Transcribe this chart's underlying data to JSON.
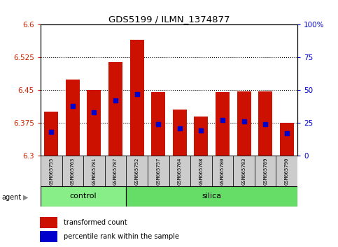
{
  "title": "GDS5199 / ILMN_1374877",
  "samples": [
    "GSM665755",
    "GSM665763",
    "GSM665781",
    "GSM665787",
    "GSM665752",
    "GSM665757",
    "GSM665764",
    "GSM665768",
    "GSM665780",
    "GSM665783",
    "GSM665789",
    "GSM665790"
  ],
  "groups": [
    "control",
    "control",
    "control",
    "control",
    "silica",
    "silica",
    "silica",
    "silica",
    "silica",
    "silica",
    "silica",
    "silica"
  ],
  "transformed_count": [
    6.4,
    6.475,
    6.45,
    6.515,
    6.565,
    6.445,
    6.405,
    6.39,
    6.445,
    6.447,
    6.447,
    6.375
  ],
  "percentile_rank": [
    18,
    38,
    33,
    42,
    47,
    24,
    21,
    19,
    27,
    26,
    24,
    17
  ],
  "ylim_left": [
    6.3,
    6.6
  ],
  "ylim_right": [
    0,
    100
  ],
  "yticks_left": [
    6.3,
    6.375,
    6.45,
    6.525,
    6.6
  ],
  "yticks_right": [
    0,
    25,
    50,
    75,
    100
  ],
  "bar_color": "#cc1100",
  "marker_color": "#0000cc",
  "control_color": "#88ee88",
  "silica_color": "#66dd66",
  "base_value": 6.3,
  "group_label_control": "control",
  "group_label_silica": "silica",
  "agent_label": "agent",
  "legend_bar": "transformed count",
  "legend_marker": "percentile rank within the sample",
  "grid_color": "#000000",
  "bg_plot": "#ffffff",
  "bg_label": "#cccccc",
  "bar_width": 0.65,
  "ctrl_count": 4,
  "n_samples": 12
}
